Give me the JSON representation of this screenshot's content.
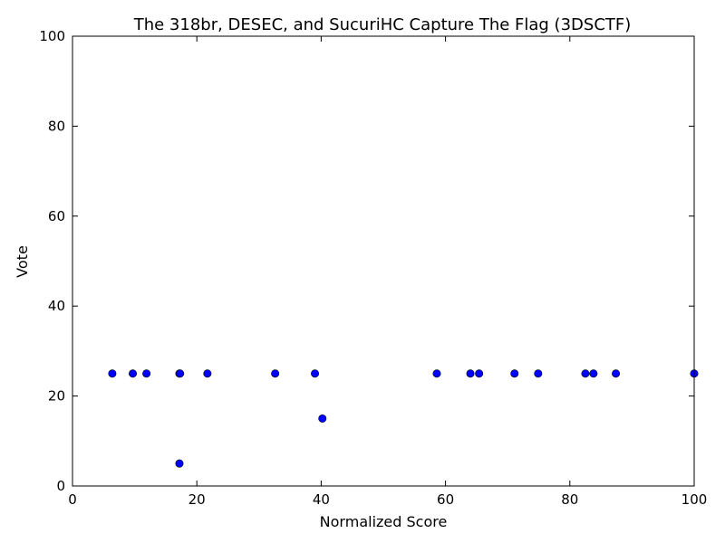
{
  "chart_data": {
    "type": "scatter",
    "title": "The 318br, DESEC, and SucuriHC Capture The Flag (3DSCTF)",
    "xlabel": "Normalized Score",
    "ylabel": "Vote",
    "xlim": [
      0,
      100
    ],
    "ylim": [
      0,
      100
    ],
    "xticks": [
      0,
      20,
      40,
      60,
      80,
      100
    ],
    "yticks": [
      0,
      20,
      40,
      60,
      80,
      100
    ],
    "grid": false,
    "marker_color": "#0000ff",
    "marker_edge_color": "#000000",
    "points": [
      {
        "x": 6.4,
        "y": 25
      },
      {
        "x": 9.7,
        "y": 25
      },
      {
        "x": 11.9,
        "y": 25
      },
      {
        "x": 17.2,
        "y": 25
      },
      {
        "x": 17.3,
        "y": 25
      },
      {
        "x": 17.2,
        "y": 5
      },
      {
        "x": 21.7,
        "y": 25
      },
      {
        "x": 32.6,
        "y": 25
      },
      {
        "x": 39.0,
        "y": 25
      },
      {
        "x": 40.2,
        "y": 15
      },
      {
        "x": 58.6,
        "y": 25
      },
      {
        "x": 64.0,
        "y": 25
      },
      {
        "x": 65.4,
        "y": 25
      },
      {
        "x": 71.1,
        "y": 25
      },
      {
        "x": 74.9,
        "y": 25
      },
      {
        "x": 82.5,
        "y": 25
      },
      {
        "x": 83.8,
        "y": 25
      },
      {
        "x": 87.4,
        "y": 25
      },
      {
        "x": 100,
        "y": 25
      }
    ]
  }
}
